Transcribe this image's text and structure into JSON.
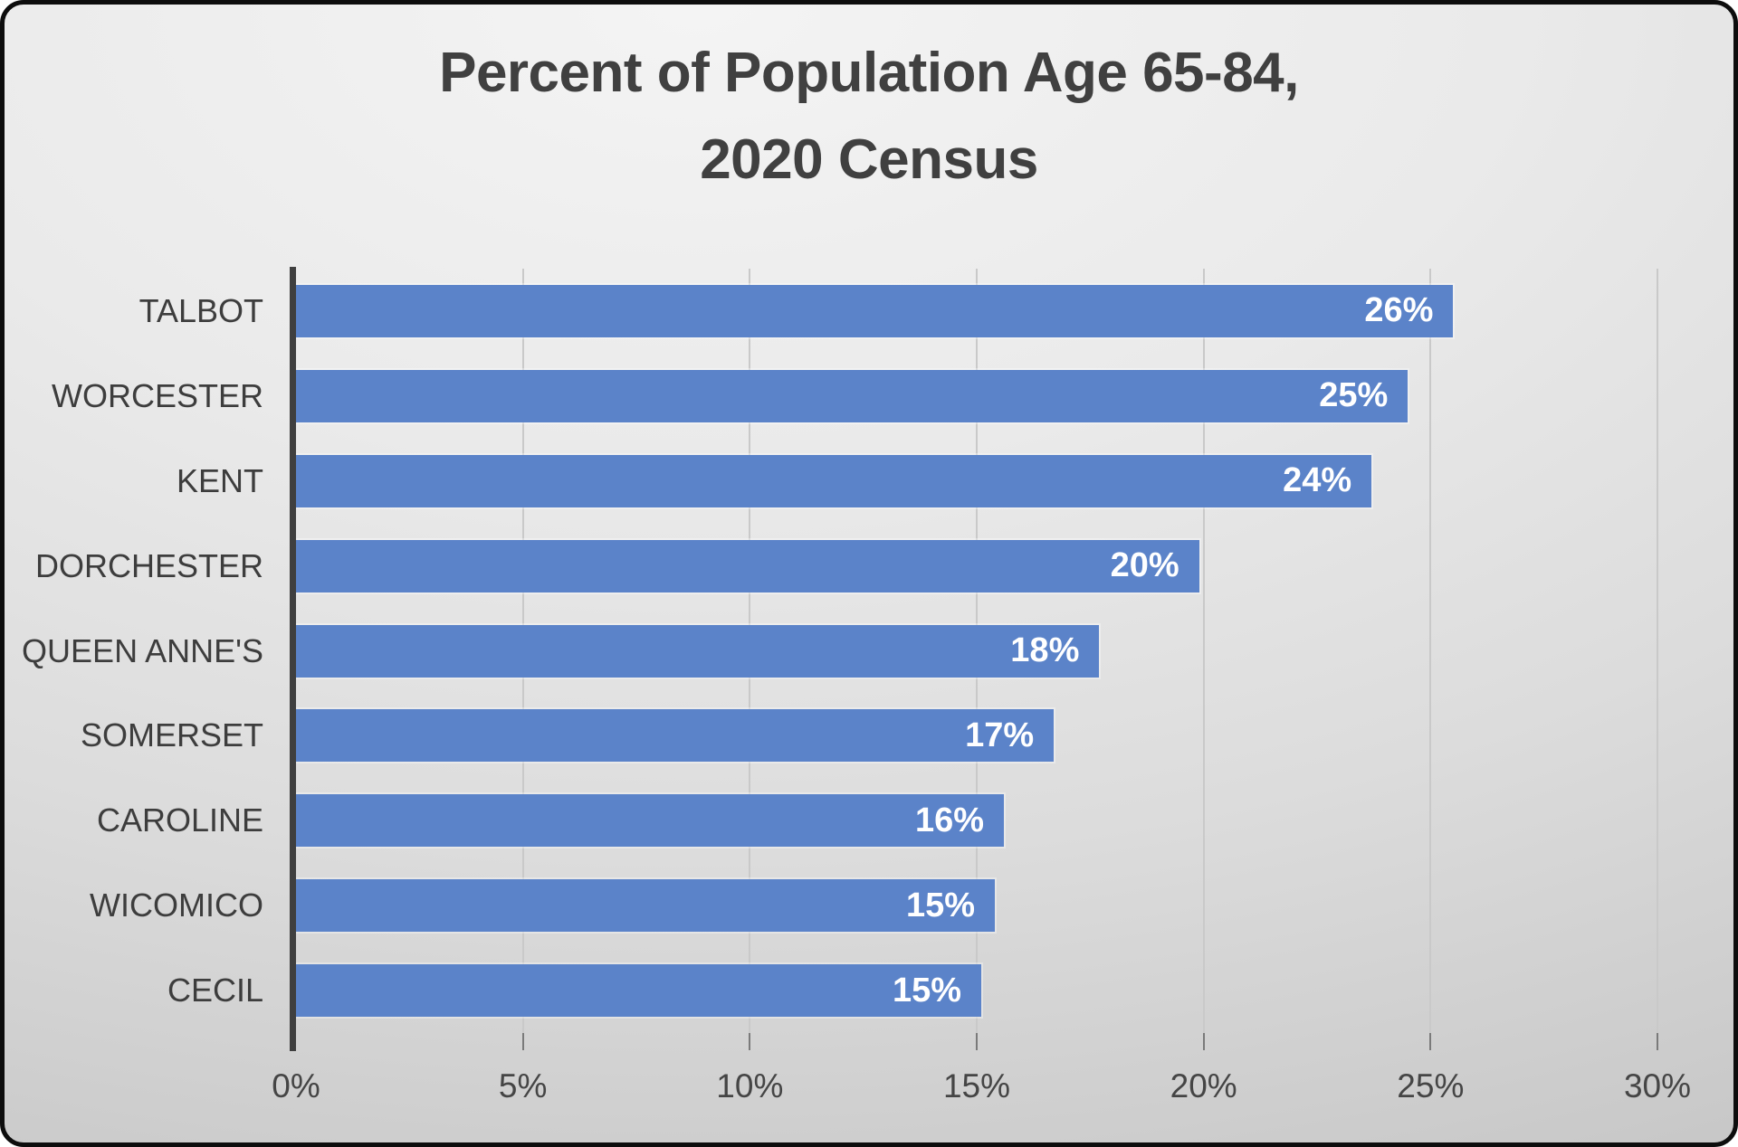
{
  "chart_data": {
    "type": "bar",
    "orientation": "horizontal",
    "title": "Percent of Population Age 65-84, 2020 Census",
    "title_lines": [
      "Percent of Population Age 65-84,",
      "2020 Census"
    ],
    "categories": [
      "TALBOT",
      "WORCESTER",
      "KENT",
      "DORCHESTER",
      "QUEEN ANNE'S",
      "SOMERSET",
      "CAROLINE",
      "WICOMICO",
      "CECIL"
    ],
    "values": [
      26,
      25,
      24,
      20,
      18,
      17,
      16,
      15,
      15
    ],
    "value_labels": [
      "26%",
      "25%",
      "24%",
      "20%",
      "18%",
      "17%",
      "16%",
      "15%",
      "15%"
    ],
    "bar_lengths_pct": [
      25.5,
      24.5,
      23.7,
      19.9,
      17.7,
      16.7,
      15.6,
      15.4,
      15.1
    ],
    "x_axis": {
      "ticks": [
        "0%",
        "5%",
        "10%",
        "15%",
        "20%",
        "25%",
        "30%"
      ],
      "min": 0,
      "max": 30,
      "tick_interval": 5,
      "gridlines": true
    },
    "legend": "none",
    "colors": {
      "bar": "#5b83c9",
      "value_label": "#ffffff",
      "text": "#404040",
      "gridline": "#c9c9c9",
      "tick": "#7a7a7a",
      "axis_line": "#3f3f3f",
      "background_light": "#f4f4f4",
      "background_dark": "#c6c6c6",
      "border": "#0d0d0d"
    }
  }
}
